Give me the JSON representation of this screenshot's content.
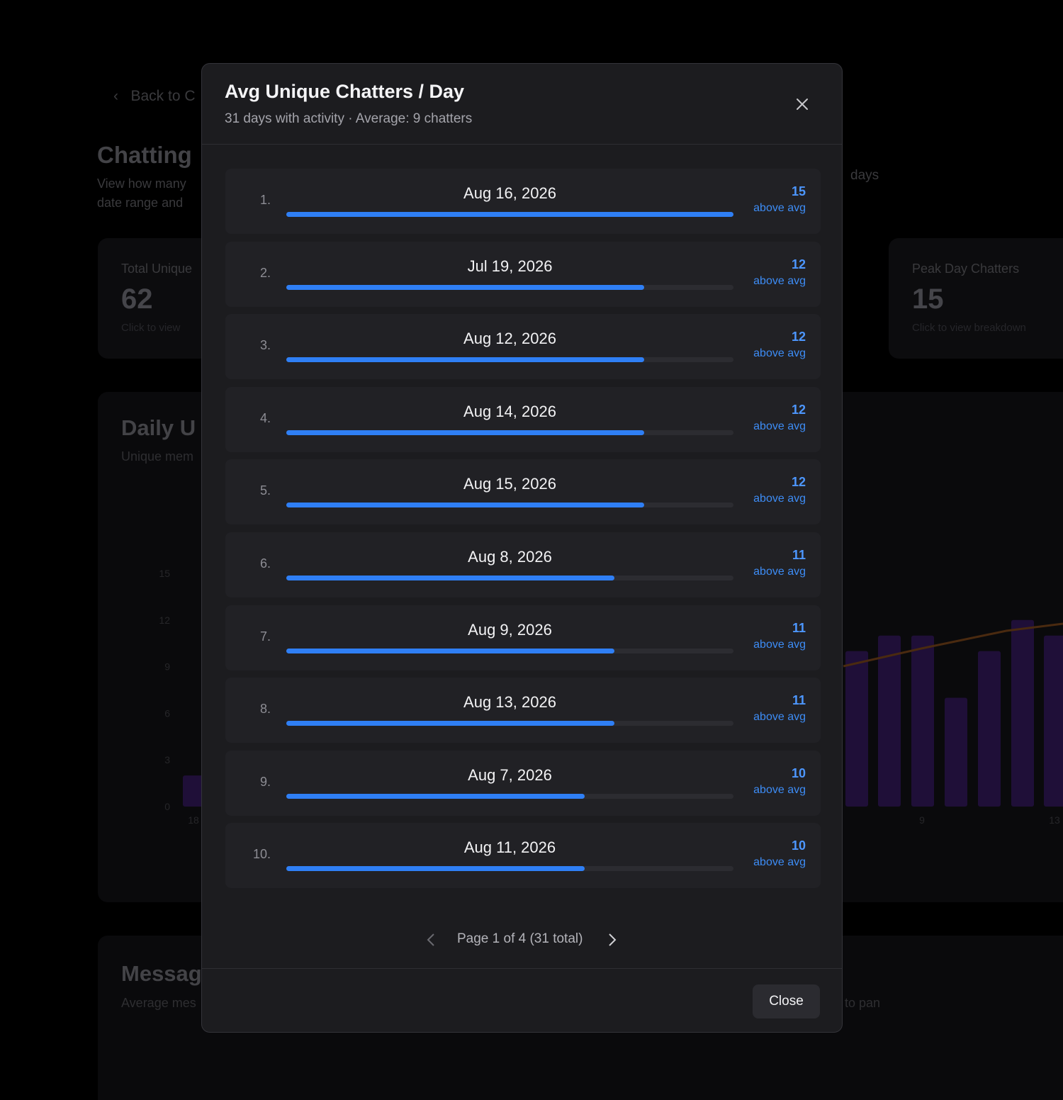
{
  "background": {
    "back_link": "Back to C",
    "heading": "Chatting",
    "description": [
      "View how many",
      "date range and"
    ],
    "days_label": "days",
    "cards": [
      {
        "label": "Total Unique",
        "value": "62",
        "hint": "Click to view"
      },
      {
        "label": "Peak Day Chatters",
        "value": "15",
        "hint": "Click to view breakdown"
      }
    ],
    "chart": {
      "title": "Daily U",
      "subtitle": "Unique mem",
      "type": "bar",
      "ylim": [
        0,
        15
      ],
      "yticks": [
        15,
        12,
        9,
        6,
        3,
        0
      ],
      "categories": [
        "18",
        null,
        null,
        null,
        null,
        null,
        null,
        null
      ],
      "xlabels": [
        "18",
        "9",
        "13"
      ],
      "values": [
        2,
        10,
        11,
        11,
        7,
        10,
        12,
        11
      ]
    },
    "messages": {
      "title": "Messag",
      "subtitle": "Average mes",
      "hint": "to pan"
    }
  },
  "modal": {
    "title": "Avg Unique Chatters / Day",
    "subtitle": "31 days with activity · Average: 9 chatters",
    "rows": [
      {
        "rank": "1.",
        "date": "Aug 16, 2026",
        "value": 15,
        "note": "above avg"
      },
      {
        "rank": "2.",
        "date": "Jul 19, 2026",
        "value": 12,
        "note": "above avg"
      },
      {
        "rank": "3.",
        "date": "Aug 12, 2026",
        "value": 12,
        "note": "above avg"
      },
      {
        "rank": "4.",
        "date": "Aug 14, 2026",
        "value": 12,
        "note": "above avg"
      },
      {
        "rank": "5.",
        "date": "Aug 15, 2026",
        "value": 12,
        "note": "above avg"
      },
      {
        "rank": "6.",
        "date": "Aug 8, 2026",
        "value": 11,
        "note": "above avg"
      },
      {
        "rank": "7.",
        "date": "Aug 9, 2026",
        "value": 11,
        "note": "above avg"
      },
      {
        "rank": "8.",
        "date": "Aug 13, 2026",
        "value": 11,
        "note": "above avg"
      },
      {
        "rank": "9.",
        "date": "Aug 7, 2026",
        "value": 10,
        "note": "above avg"
      },
      {
        "rank": "10.",
        "date": "Aug 11, 2026",
        "value": 10,
        "note": "above avg"
      }
    ],
    "pagination": "Page 1 of 4 (31 total)",
    "close_button": "Close"
  }
}
